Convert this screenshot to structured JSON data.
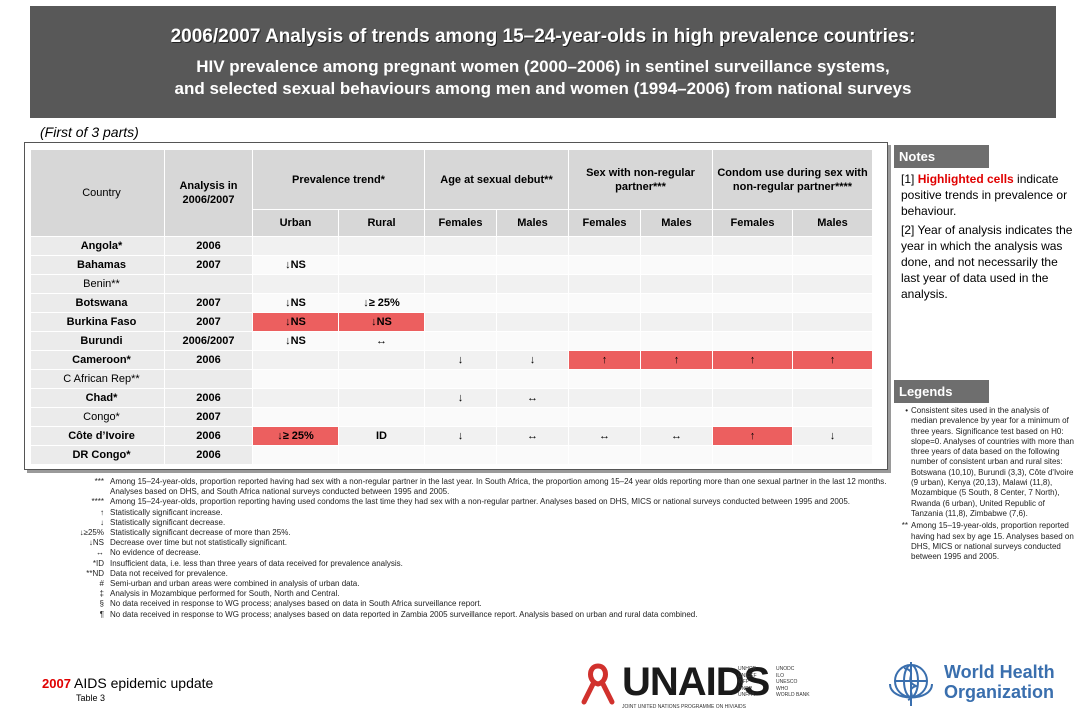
{
  "header": {
    "title": "2006/2007 Analysis of trends among 15–24-year-olds in high prevalence countries:",
    "subtitle_line1": "HIV prevalence among pregnant women (2000–2006) in sentinel surveillance systems,",
    "subtitle_line2": "and selected sexual behaviours among men and women (1994–2006) from national surveys"
  },
  "part_label": "(First of 3 parts)",
  "table": {
    "country_header": "Country",
    "analysis_header": "Analysis in 2006/2007",
    "groups": [
      "Prevalence trend*",
      "Age at sexual debut**",
      "Sex with non-regular partner***",
      "Condom use during sex with non-regular partner****"
    ],
    "subheaders": [
      "Urban",
      "Rural",
      "Females",
      "Males",
      "Females",
      "Males",
      "Females",
      "Males"
    ],
    "rows": [
      {
        "country": "Angola*",
        "year": "2006",
        "cells": [
          "",
          "",
          "",
          "",
          "",
          "",
          "",
          ""
        ]
      },
      {
        "country": "Bahamas",
        "year": "2007",
        "cells": [
          "↓NS",
          "",
          "",
          "",
          "",
          "",
          "",
          ""
        ]
      },
      {
        "country": "Benin**",
        "year": "",
        "cells": [
          "",
          "",
          "",
          "",
          "",
          "",
          "",
          ""
        ]
      },
      {
        "country": "Botswana",
        "year": "2007",
        "cells": [
          "↓NS",
          "↓≥ 25%",
          "",
          "",
          "",
          "",
          "",
          ""
        ]
      },
      {
        "country": "Burkina Faso",
        "year": "2007",
        "cells": [
          "↓NS",
          "↓NS",
          "",
          "",
          "",
          "",
          "",
          ""
        ]
      },
      {
        "country": "Burundi",
        "year": "2006/2007",
        "cells": [
          "↓NS",
          "↔",
          "",
          "",
          "",
          "",
          "",
          ""
        ]
      },
      {
        "country": "Cameroon*",
        "year": "2006",
        "cells": [
          "",
          "",
          "↓",
          "↓",
          "↑",
          "↑",
          "↑",
          "↑"
        ]
      },
      {
        "country": "C African Rep**",
        "year": "",
        "cells": [
          "",
          "",
          "",
          "",
          "",
          "",
          "",
          ""
        ]
      },
      {
        "country": "Chad*",
        "year": "2006",
        "cells": [
          "",
          "",
          "↓",
          "↔",
          "",
          "",
          "",
          ""
        ]
      },
      {
        "country": "Congo*",
        "year": "2007",
        "cells": [
          "",
          "",
          "",
          "",
          "",
          "",
          "",
          ""
        ]
      },
      {
        "country": "Côte d’Ivoire",
        "year": "2006",
        "cells": [
          "↓≥ 25%",
          "ID",
          "↓",
          "↔",
          "↔",
          "↔",
          "↑",
          "↓"
        ]
      },
      {
        "country": "DR Congo*",
        "year": "2006",
        "cells": [
          "",
          "",
          "",
          "",
          "",
          "",
          "",
          ""
        ]
      }
    ]
  },
  "footnotes": [
    {
      "sym": "***",
      "text": "Among 15–24-year-olds, proportion reported having had sex with a non-regular partner in the last year. In South Africa, the proportion among 15–24 year olds reporting more than one sexual partner in the last 12 months. Analyses based on DHS, and South Africa national surveys conducted between 1995 and 2005."
    },
    {
      "sym": "****",
      "text": "Among 15–24-year-olds, proportion reporting having used condoms the last time they had sex with a non-regular partner. Analyses based on DHS, MICS or national surveys conducted between 1995 and 2005."
    },
    {
      "sym": "↑",
      "text": "Statistically significant increase."
    },
    {
      "sym": "↓",
      "text": "Statistically significant decrease."
    },
    {
      "sym": "↓≥25%",
      "text": "Statistically significant decrease of more than 25%."
    },
    {
      "sym": "↓NS",
      "text": "Decrease over time but not statistically significant."
    },
    {
      "sym": "↔",
      "text": "No evidence of decrease."
    },
    {
      "sym": "*ID",
      "text": "Insufficient data, i.e. less than three years of data received for prevalence analysis."
    },
    {
      "sym": "**ND",
      "text": "Data not received for prevalence."
    },
    {
      "sym": "#",
      "text": "Semi-urban and urban areas were combined in analysis of urban data."
    },
    {
      "sym": "‡",
      "text": "Analysis in Mozambique performed for South, North and Central."
    },
    {
      "sym": "§",
      "text": "No data received in response to WG process; analyses based on data in South Africa surveillance report."
    },
    {
      "sym": "¶",
      "text": "No data received in response to WG process; analyses based on data reported in Zambia 2005 surveillance report.  Analysis based on urban and rural data combined."
    }
  ],
  "notes": {
    "title": "Notes",
    "n1_prefix": "[1] ",
    "n1_highlight": "Highlighted cells",
    "n1_rest": " indicate positive trends in prevalence or behaviour.",
    "n2": "[2] Year of analysis indicates the year in which the analysis was done, and not necessarily the last year of data used in the analysis."
  },
  "legends": {
    "title": "Legends",
    "items": [
      {
        "sym": "•",
        "text": "Consistent sites used in the analysis of median prevalence by year for a minimum of three years. Significance test based on H0: slope=0. Analyses of countries with more than three years of data based on the following number of consistent urban and rural sites: Botswana (10,10), Burundi (3,3), Côte d'Ivoire (9 urban), Kenya (20,13), Malawi (11,8), Mozambique (5 South, 8 Center, 7 North), Rwanda (6 urban), United Republic of Tanzania (11,8), Zimbabwe (7,6)."
      },
      {
        "sym": "**",
        "text": "Among 15–19-year-olds, proportion reported having had sex by age 15. Analyses based on DHS, MICS or national surveys conducted between 1995 and 2005."
      }
    ]
  },
  "bottom": {
    "year": "2007",
    "title": " AIDS epidemic update",
    "table_label": "Table 3"
  },
  "logos": {
    "unaids_word": "UNAIDS",
    "unaids_tagline": "JOINT UNITED NATIONS PROGRAMME ON HIV/AIDS",
    "unaids_orgs_col1": "UNHCR\nUNICEF\nWFP\nUNDP\nUNFPA",
    "unaids_orgs_col2": "UNODC\nILO\nUNESCO\nWHO\nWORLD BANK",
    "who_line1": "World Health",
    "who_line2": "Organization"
  },
  "colors": {
    "header_bg": "#585858",
    "highlight": "#ec5f5f",
    "accent_red": "#e00000",
    "who_blue": "#3a6fae"
  }
}
